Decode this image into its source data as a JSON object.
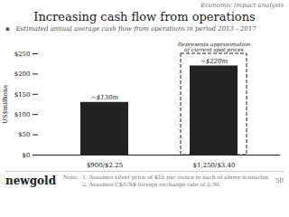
{
  "chart_data": {
    "type": "bar",
    "title": "Increasing cash flow from operations",
    "subtitle": "▪   Estimated annual average cash flow from operations in period 2013 - 2017",
    "categories": [
      "$900/$2.25",
      "$1,250/$3.40"
    ],
    "values": [
      130,
      220
    ],
    "value_labels": [
      "~$130m",
      "~$220m"
    ],
    "data_labels": true,
    "ylabel": "US$millions",
    "ylim": [
      0,
      250
    ],
    "yticks": [
      {
        "value": 0,
        "label": "$0"
      },
      {
        "value": 50,
        "label": "$50"
      },
      {
        "value": 100,
        "label": "$100"
      },
      {
        "value": 150,
        "label": "$150"
      },
      {
        "value": 200,
        "label": "$200"
      },
      {
        "value": 250,
        "label": "$250"
      }
    ],
    "grid": false,
    "annotations": [
      "Economic impact analysis",
      "Represents approximation",
      "of current spot prices",
      "Note:",
      "1.  Assumes silver price of $15 per ounce in each of above scenarios.",
      "2.  Assumes C$/US$ foreign exchange rate of 0.90.",
      "newgold",
      "50"
    ]
  }
}
